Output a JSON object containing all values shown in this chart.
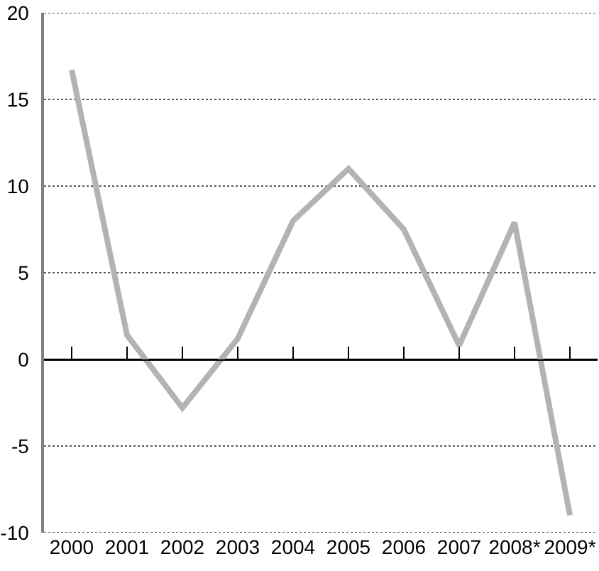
{
  "chart_data": {
    "type": "line",
    "categories": [
      "2000",
      "2001",
      "2002",
      "2003",
      "2004",
      "2005",
      "2006",
      "2007",
      "2008*",
      "2009*"
    ],
    "series": [
      {
        "color": "#b3b3b3",
        "values": [
          16.7,
          1.4,
          -2.8,
          1.2,
          8.0,
          11.0,
          7.5,
          0.8,
          7.9,
          -9.0
        ]
      }
    ],
    "ylim": [
      -10,
      20
    ],
    "yticks": [
      -10,
      -5,
      0,
      5,
      10,
      15,
      20
    ],
    "grid": "y",
    "marker": "none",
    "line_style": "solid"
  }
}
